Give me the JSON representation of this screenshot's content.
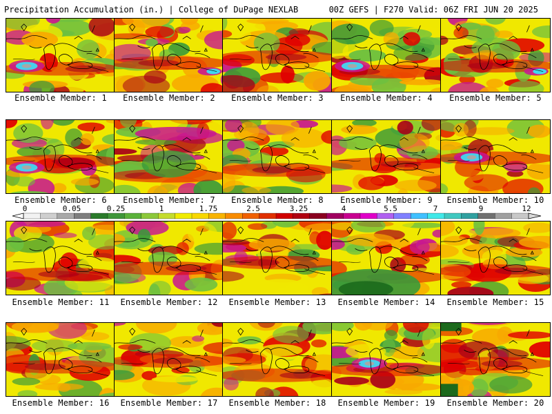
{
  "header": {
    "title": "Precipitation Accumulation (in.) | College of DuPage NEXLAB",
    "run_info": "00Z GEFS | F270 Valid: 06Z FRI JUN 20 2025"
  },
  "member_prefix": "Ensemble Member: ",
  "members": [
    {
      "id": "1",
      "label": "Ensemble Member: 1"
    },
    {
      "id": "2",
      "label": "Ensemble Member: 2"
    },
    {
      "id": "3",
      "label": "Ensemble Member: 3"
    },
    {
      "id": "4",
      "label": "Ensemble Member: 4"
    },
    {
      "id": "5",
      "label": "Ensemble Member: 5"
    },
    {
      "id": "6",
      "label": "Ensemble Member: 6"
    },
    {
      "id": "7",
      "label": "Ensemble Member: 7"
    },
    {
      "id": "8",
      "label": "Ensemble Member: 8"
    },
    {
      "id": "9",
      "label": "Ensemble Member: 9"
    },
    {
      "id": "10",
      "label": "Ensemble Member: 10"
    },
    {
      "id": "11",
      "label": "Ensemble Member: 11"
    },
    {
      "id": "12",
      "label": "Ensemble Member: 12"
    },
    {
      "id": "13",
      "label": "Ensemble Member: 13"
    },
    {
      "id": "14",
      "label": "Ensemble Member: 14"
    },
    {
      "id": "15",
      "label": "Ensemble Member: 15"
    },
    {
      "id": "16",
      "label": "Ensemble Member: 16"
    },
    {
      "id": "17",
      "label": "Ensemble Member: 17"
    },
    {
      "id": "18",
      "label": "Ensemble Member: 18"
    },
    {
      "id": "19",
      "label": "Ensemble Member: 19"
    },
    {
      "id": "20",
      "label": "Ensemble Member: 20"
    }
  ],
  "colorbar": {
    "tick_labels": [
      "0",
      "0.05",
      "0.25",
      "1",
      "1.75",
      "2.5",
      "3.25",
      "4",
      "5.5",
      "7",
      "9",
      "12"
    ],
    "colors": [
      "#f2f2f2",
      "#cfcfcf",
      "#a8a8a8",
      "#7e7e7e",
      "#2a7a2a",
      "#3f963a",
      "#5bb23a",
      "#8cc83a",
      "#c4dc2e",
      "#f0ec00",
      "#f8d800",
      "#f8b400",
      "#f88c00",
      "#f06000",
      "#e03000",
      "#d00000",
      "#b00010",
      "#8a0020",
      "#a00060",
      "#c80090",
      "#e000c8",
      "#b060f0",
      "#8080ff",
      "#40c0ff",
      "#40e8e8",
      "#40c8c0",
      "#30a0a0",
      "#707070",
      "#a0a0a0",
      "#c8c8c8"
    ]
  },
  "palette": {
    "yellow": "#f0e800",
    "orange": "#f8a800",
    "red": "#e00000",
    "darkred": "#a80018",
    "magenta": "#c81890",
    "lightgreen": "#6cc040",
    "green": "#3a9a3a",
    "darkgreen": "#1c6a1c",
    "cyan": "#40d8f0",
    "gray": "#a8a8a8"
  }
}
